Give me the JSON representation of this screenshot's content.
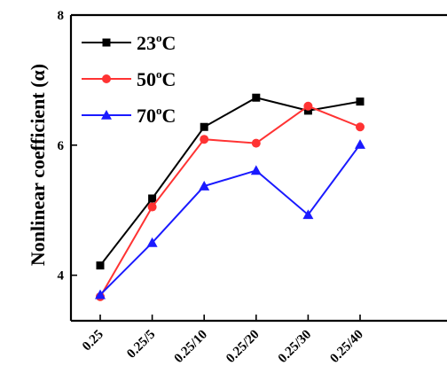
{
  "chart_data": {
    "type": "line",
    "title": "",
    "xlabel": "",
    "ylabel": "Nonlinear coefficient (α)",
    "categories": [
      "0.25",
      "0.25/5",
      "0.25/10",
      "0.25/20",
      "0.25/30",
      "0.25/40"
    ],
    "ylim": [
      3.3,
      8
    ],
    "yticks": [
      4,
      6,
      8
    ],
    "grid": false,
    "legend_position": "top-left",
    "series": [
      {
        "name_main": "23",
        "name_sup": "o",
        "name_tail": "C",
        "color": "#000000",
        "marker": "square",
        "values": [
          4.15,
          5.18,
          6.28,
          6.73,
          6.53,
          6.67
        ]
      },
      {
        "name_main": "50",
        "name_sup": "o",
        "name_tail": "C",
        "color": "#ff3333",
        "marker": "circle",
        "values": [
          3.67,
          5.05,
          6.09,
          6.03,
          6.6,
          6.28
        ]
      },
      {
        "name_main": "70",
        "name_sup": "o",
        "name_tail": "C",
        "color": "#1a1aff",
        "marker": "triangle",
        "values": [
          3.7,
          4.5,
          5.37,
          5.61,
          4.93,
          6.01
        ]
      }
    ]
  }
}
